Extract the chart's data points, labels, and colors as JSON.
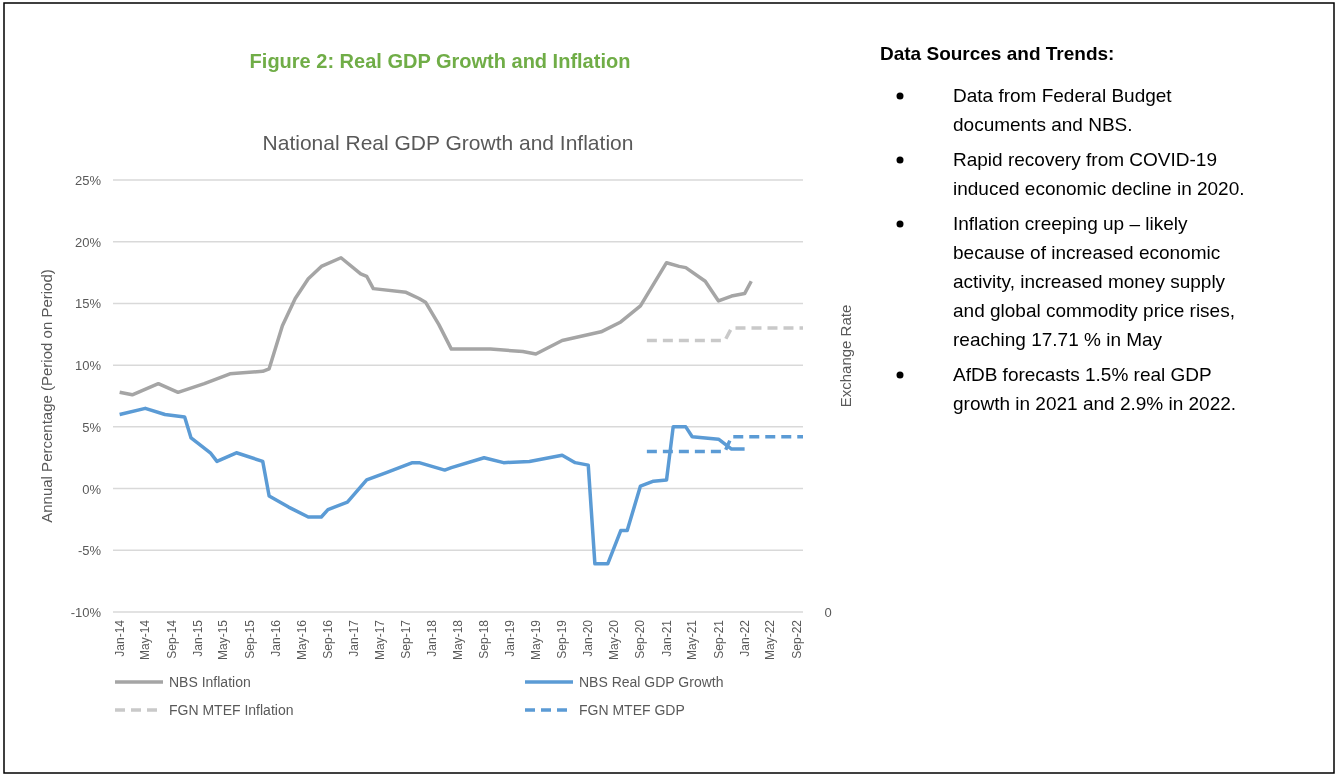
{
  "chart_data": {
    "type": "line",
    "title": "National Real GDP Growth and Inflation",
    "ylabel": "Annual Percentage (Period on Period)",
    "y2label": "Exchange Rate",
    "annotations": [
      "Figure 2: Real GDP Growth and Inflation",
      "0",
      "Data Sources and Trends:",
      "Data from Federal Budget documents and NBS.",
      "Rapid recovery from COVID-19 induced economic decline in 2020.",
      "Inflation creeping up – likely because of increased economic activity, increased money supply and global commodity price rises, reaching 17.71 % in May",
      "AfDB forecasts 1.5% real GDP growth in 2021 and 2.9% in 2022."
    ],
    "xlim": [
      "2013-12",
      "2022-10"
    ],
    "xticks": [
      {
        "value": "2014-01",
        "label": "Jan-14"
      },
      {
        "value": "2014-05",
        "label": "May-14"
      },
      {
        "value": "2014-09",
        "label": "Sep-14"
      },
      {
        "value": "2015-01",
        "label": "Jan-15"
      },
      {
        "value": "2015-05",
        "label": "May-15"
      },
      {
        "value": "2015-09",
        "label": "Sep-15"
      },
      {
        "value": "2016-01",
        "label": "Jan-16"
      },
      {
        "value": "2016-05",
        "label": "May-16"
      },
      {
        "value": "2016-09",
        "label": "Sep-16"
      },
      {
        "value": "2017-01",
        "label": "Jan-17"
      },
      {
        "value": "2017-05",
        "label": "May-17"
      },
      {
        "value": "2017-09",
        "label": "Sep-17"
      },
      {
        "value": "2018-01",
        "label": "Jan-18"
      },
      {
        "value": "2018-05",
        "label": "May-18"
      },
      {
        "value": "2018-09",
        "label": "Sep-18"
      },
      {
        "value": "2019-01",
        "label": "Jan-19"
      },
      {
        "value": "2019-05",
        "label": "May-19"
      },
      {
        "value": "2019-09",
        "label": "Sep-19"
      },
      {
        "value": "2020-01",
        "label": "Jan-20"
      },
      {
        "value": "2020-05",
        "label": "May-20"
      },
      {
        "value": "2020-09",
        "label": "Sep-20"
      },
      {
        "value": "2021-01",
        "label": "Jan-21"
      },
      {
        "value": "2021-05",
        "label": "May-21"
      },
      {
        "value": "2021-09",
        "label": "Sep-21"
      },
      {
        "value": "2022-01",
        "label": "Jan-22"
      },
      {
        "value": "2022-05",
        "label": "May-22"
      },
      {
        "value": "2022-09",
        "label": "Sep-22"
      }
    ],
    "ylim": [
      -10,
      25
    ],
    "yticks": [
      {
        "value": -10,
        "label": "-10%"
      },
      {
        "value": -5,
        "label": "-5%"
      },
      {
        "value": 0,
        "label": "0%"
      },
      {
        "value": 5,
        "label": "5%"
      },
      {
        "value": 10,
        "label": "10%"
      },
      {
        "value": 15,
        "label": "15%"
      },
      {
        "value": 20,
        "label": "20%"
      },
      {
        "value": 25,
        "label": "25%"
      }
    ],
    "grid": "y",
    "legend": "bottom",
    "series": [
      {
        "name": "NBS Inflation",
        "color": "#a5a5a5",
        "line_style": "solid",
        "x": [
          "2014-01",
          "2014-03",
          "2014-07",
          "2014-10",
          "2015-02",
          "2015-06",
          "2015-11",
          "2015-12",
          "2016-02",
          "2016-04",
          "2016-06",
          "2016-08",
          "2016-11",
          "2017-02",
          "2017-03",
          "2017-04",
          "2017-09",
          "2017-11",
          "2017-12",
          "2018-02",
          "2018-04",
          "2018-10",
          "2019-03",
          "2019-05",
          "2019-09",
          "2020-03",
          "2020-06",
          "2020-09",
          "2021-01",
          "2021-03",
          "2021-04",
          "2021-07",
          "2021-09",
          "2021-11",
          "2022-01",
          "2022-02"
        ],
        "values": [
          7.8,
          7.6,
          8.5,
          7.8,
          8.5,
          9.3,
          9.5,
          9.7,
          13.2,
          15.4,
          17.0,
          18.0,
          18.7,
          17.4,
          17.2,
          16.2,
          15.9,
          15.4,
          15.1,
          13.3,
          11.3,
          11.3,
          11.1,
          10.9,
          12.0,
          12.7,
          13.5,
          14.8,
          18.3,
          18.0,
          17.9,
          16.8,
          15.2,
          15.6,
          15.8,
          16.8
        ]
      },
      {
        "name": "NBS Real GDP Growth",
        "color": "#5b9bd5",
        "line_style": "solid",
        "x": [
          "2014-01",
          "2014-05",
          "2014-08",
          "2014-11",
          "2014-12",
          "2015-03",
          "2015-04",
          "2015-07",
          "2015-11",
          "2015-12",
          "2016-03",
          "2016-06",
          "2016-08",
          "2016-09",
          "2016-12",
          "2017-03",
          "2017-06",
          "2017-10",
          "2017-11",
          "2018-03",
          "2018-04",
          "2018-09",
          "2018-12",
          "2019-04",
          "2019-09",
          "2019-11",
          "2020-01",
          "2020-02",
          "2020-04",
          "2020-06",
          "2020-07",
          "2020-09",
          "2020-11",
          "2021-01",
          "2021-02",
          "2021-04",
          "2021-05",
          "2021-09",
          "2021-11",
          "2022-01"
        ],
        "values": [
          6.0,
          6.5,
          6.0,
          5.8,
          4.1,
          2.9,
          2.2,
          2.9,
          2.2,
          -0.6,
          -1.5,
          -2.3,
          -2.3,
          -1.7,
          -1.1,
          0.7,
          1.3,
          2.1,
          2.1,
          1.5,
          1.7,
          2.5,
          2.1,
          2.2,
          2.7,
          2.1,
          1.9,
          -6.1,
          -6.1,
          -3.4,
          -3.4,
          0.2,
          0.6,
          0.7,
          5.0,
          5.0,
          4.2,
          4.0,
          3.2,
          3.2
        ]
      },
      {
        "name": "FGN MTEF Inflation",
        "color": "#c9c9c9",
        "line_style": "dashed",
        "x": [
          "2020-10",
          "2021-10",
          "2021-11",
          "2022-10"
        ],
        "values": [
          12,
          12,
          13,
          13
        ]
      },
      {
        "name": "FGN MTEF GDP",
        "color": "#5b9bd5",
        "line_style": "dashed",
        "x": [
          "2020-10",
          "2021-10",
          "2021-11",
          "2022-10"
        ],
        "values": [
          3.0,
          3.0,
          4.2,
          4.2
        ]
      }
    ]
  }
}
